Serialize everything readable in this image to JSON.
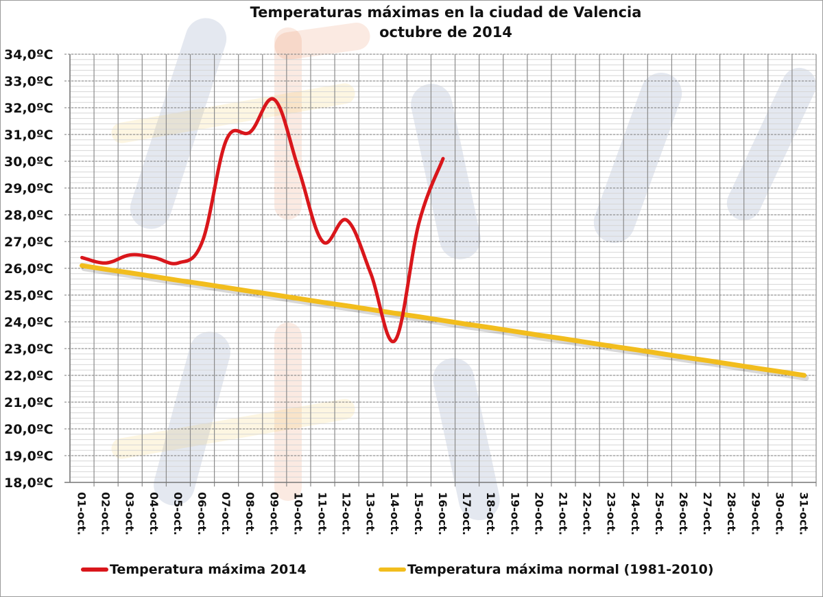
{
  "chart_data": {
    "type": "line",
    "title": "Temperaturas máximas en la ciudad de Valencia",
    "subtitle": "octubre de 2014",
    "xlabel": "",
    "ylabel": "",
    "ylim": [
      18,
      34
    ],
    "y_tick_step": 1,
    "y_tick_labels": [
      "34,0ºC",
      "33,0ºC",
      "32,0ºC",
      "31,0ºC",
      "30,0ºC",
      "29,0ºC",
      "28,0ºC",
      "27,0ºC",
      "26,0ºC",
      "25,0ºC",
      "24,0ºC",
      "23,0ºC",
      "22,0ºC",
      "21,0ºC",
      "20,0ºC",
      "19,0ºC",
      "18,0ºC"
    ],
    "categories": [
      "01-oct.",
      "02-oct.",
      "03-oct.",
      "04-oct.",
      "05-oct.",
      "06-oct.",
      "07-oct.",
      "08-oct.",
      "09-oct.",
      "10-oct.",
      "11-oct.",
      "12-oct.",
      "13-oct.",
      "14-oct.",
      "15-oct.",
      "16-oct.",
      "17-oct.",
      "18-oct.",
      "19-oct.",
      "20-oct.",
      "21-oct.",
      "22-oct.",
      "23-oct.",
      "24-oct.",
      "25-oct.",
      "26-oct.",
      "27-oct.",
      "28-oct.",
      "29-oct.",
      "30-oct.",
      "31-oct."
    ],
    "grid": true,
    "legend_position": "bottom",
    "series": [
      {
        "name": "Temperatura máxima 2014",
        "color": "#d9161b",
        "smooth": true,
        "values": [
          26.4,
          26.2,
          26.5,
          26.4,
          26.2,
          27.0,
          30.8,
          31.1,
          32.3,
          29.7,
          27.0,
          27.8,
          25.8,
          23.3,
          27.7,
          30.1
        ]
      },
      {
        "name": "Temperatura máxima normal (1981-2010)",
        "color": "#f2bd1d",
        "smooth": false,
        "values": [
          26.1,
          25.96,
          25.83,
          25.69,
          25.55,
          25.42,
          25.28,
          25.14,
          25.01,
          24.87,
          24.73,
          24.6,
          24.46,
          24.32,
          24.19,
          24.05,
          23.91,
          23.78,
          23.64,
          23.5,
          23.37,
          23.23,
          23.09,
          22.96,
          22.82,
          22.68,
          22.55,
          22.41,
          22.27,
          22.14,
          22.0
        ]
      }
    ]
  }
}
